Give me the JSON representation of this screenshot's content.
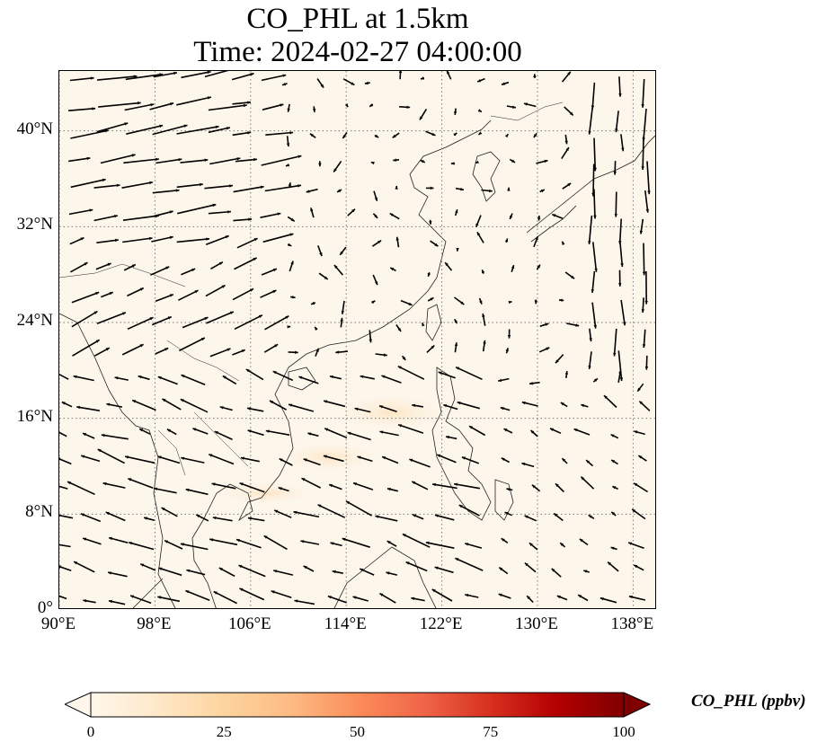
{
  "title": {
    "line1": "CO_PHL at 1.5km",
    "line2": "Time: 2024-02-27 04:00:00"
  },
  "map": {
    "lon_range": [
      90,
      140
    ],
    "lat_range": [
      0,
      45
    ],
    "lat_ticks": [
      {
        "value": 0,
        "label": "0°"
      },
      {
        "value": 8,
        "label": "8°N"
      },
      {
        "value": 16,
        "label": "16°N"
      },
      {
        "value": 24,
        "label": "24°N"
      },
      {
        "value": 32,
        "label": "32°N"
      },
      {
        "value": 40,
        "label": "40°N"
      }
    ],
    "lon_ticks": [
      {
        "value": 90,
        "label": "90°E"
      },
      {
        "value": 98,
        "label": "98°E"
      },
      {
        "value": 106,
        "label": "106°E"
      },
      {
        "value": 114,
        "label": "114°E"
      },
      {
        "value": 122,
        "label": "122°E"
      },
      {
        "value": 130,
        "label": "130°E"
      },
      {
        "value": 138,
        "label": "138°E"
      }
    ],
    "gridlines": "dotted",
    "background_color": "#fdf6eb",
    "field_variable": "CO_PHL",
    "wind_vectors": "shown"
  },
  "colorbar": {
    "label": "CO_PHL (ppbv)",
    "min": 0,
    "max": 100,
    "ticks": [
      {
        "value": 0,
        "label": "0"
      },
      {
        "value": 25,
        "label": "25"
      },
      {
        "value": 50,
        "label": "50"
      },
      {
        "value": 75,
        "label": "75"
      },
      {
        "value": 100,
        "label": "100"
      }
    ],
    "colormap": [
      "#fff7ec",
      "#fee8c8",
      "#fdd49e",
      "#fdbb84",
      "#fc8d59",
      "#ef6548",
      "#d7301f",
      "#b30000",
      "#7f0000"
    ],
    "extend": "both"
  }
}
